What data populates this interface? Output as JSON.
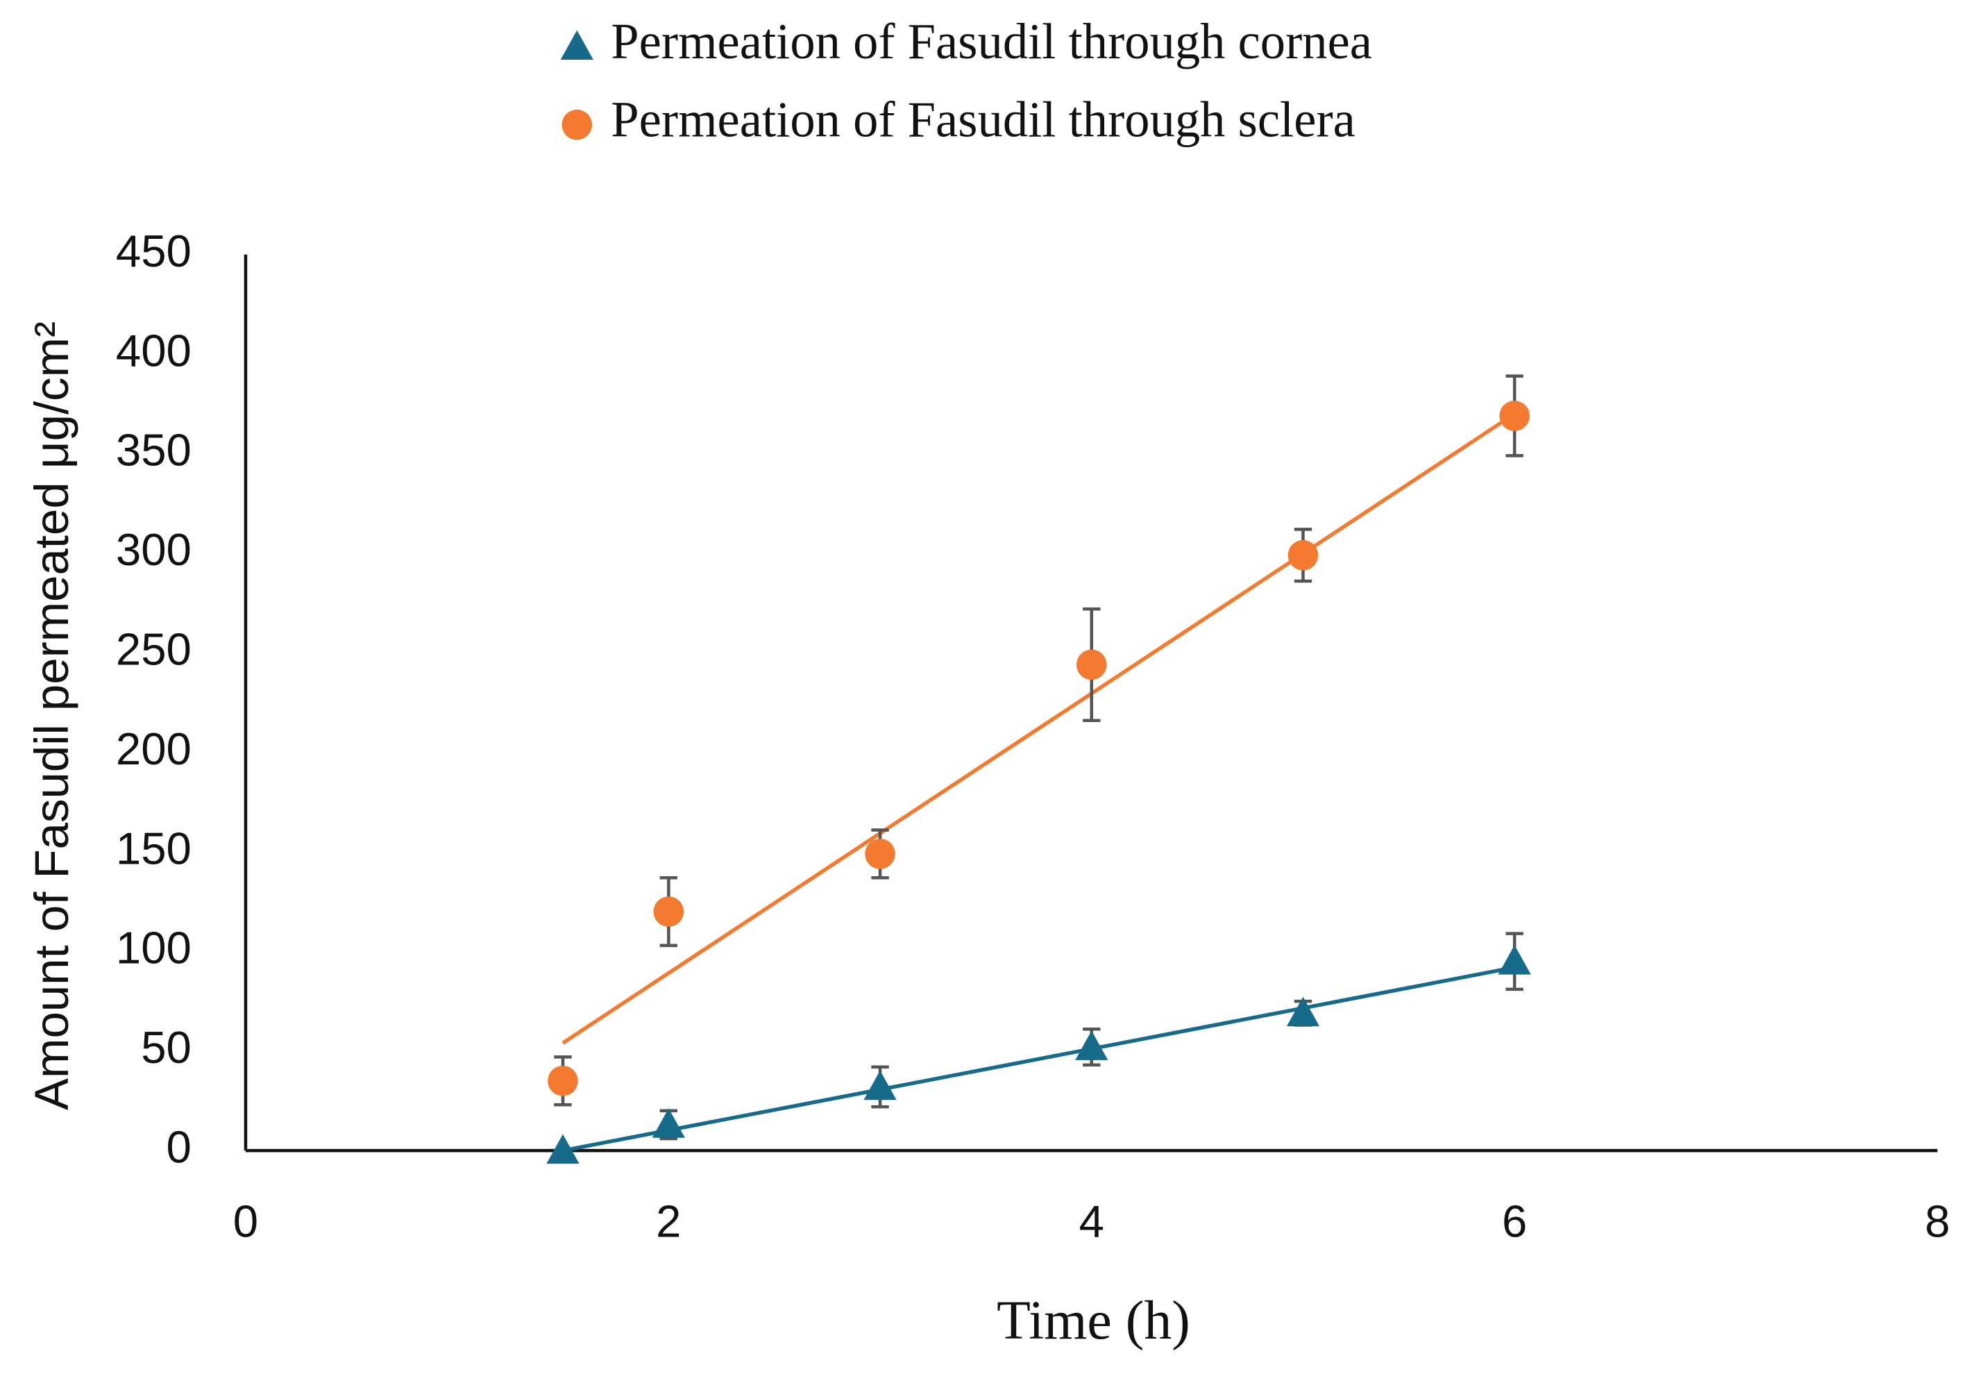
{
  "chart_data": {
    "type": "scatter",
    "xlabel": "Time (h)",
    "ylabel": "Amount of Fasudil permeated μg/cm²",
    "xlim": [
      0,
      8
    ],
    "xticks": [
      0,
      2,
      4,
      6,
      8
    ],
    "ylim": [
      0,
      450
    ],
    "yticks": [
      0,
      50,
      100,
      150,
      200,
      250,
      300,
      350,
      400,
      450
    ],
    "series": [
      {
        "name": "Permeation of Fasudil through cornea",
        "color": "#166a8a",
        "marker": "triangle",
        "x": [
          1.5,
          2,
          3,
          4,
          5,
          6
        ],
        "values": [
          0,
          13,
          32,
          52,
          69,
          95
        ],
        "errors": [
          0,
          7,
          10,
          9,
          6,
          14
        ],
        "trendline": {
          "x": [
            1.5,
            6
          ],
          "values": [
            0,
            92
          ]
        }
      },
      {
        "name": "Permeation of Fasudil through sclera",
        "color": "#f47a30",
        "marker": "circle",
        "x": [
          1.5,
          2,
          3,
          4,
          5,
          6
        ],
        "values": [
          35,
          120,
          149,
          244,
          299,
          369
        ],
        "errors": [
          12,
          17,
          12,
          28,
          13,
          20
        ],
        "trendline": {
          "x": [
            1.5,
            6
          ],
          "values": [
            54,
            370
          ]
        }
      }
    ]
  }
}
